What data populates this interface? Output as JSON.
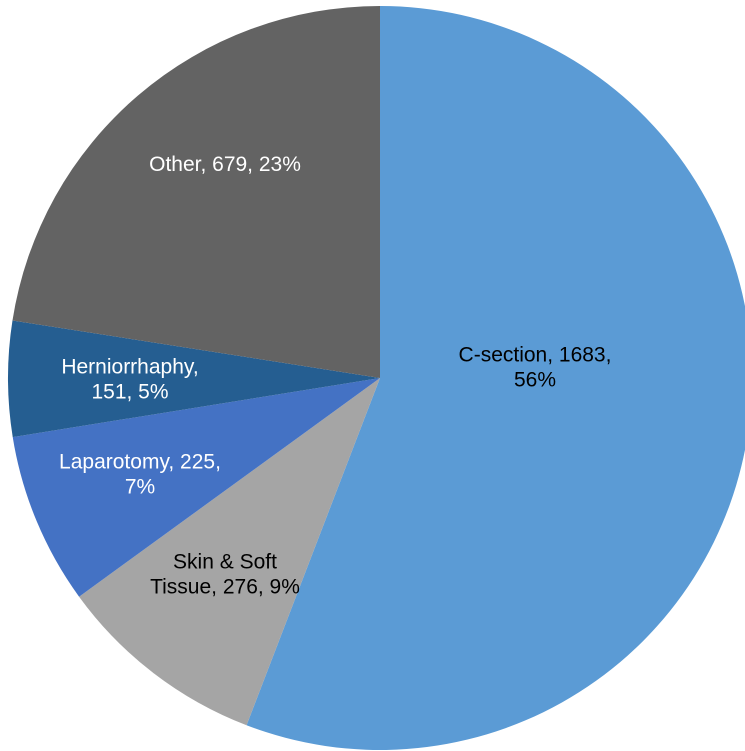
{
  "chart_data": {
    "type": "pie",
    "values": [
      1683,
      276,
      225,
      151,
      679
    ],
    "value_labels": [
      [
        "C-section, 1683,",
        "56%"
      ],
      [
        "Skin & Soft",
        "Tissue, 276, 9%"
      ],
      [
        "Laparotomy, 225,",
        "7%"
      ],
      [
        "Herniorrhaphy,",
        "151, 5%"
      ],
      [
        "Other, 679, 23%"
      ]
    ],
    "colors": [
      "#5b9bd5",
      "#a5a5a5",
      "#4472c4",
      "#255e91",
      "#636363"
    ],
    "label_colors": [
      "#000000",
      "#000000",
      "#ffffff",
      "#ffffff",
      "#ffffff"
    ]
  }
}
